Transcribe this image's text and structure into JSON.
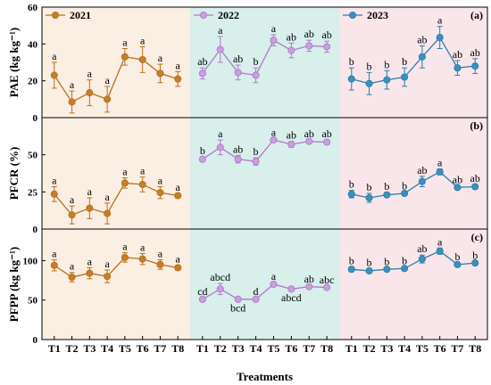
{
  "chart_data": {
    "type": "line",
    "xlabel": "Treatments",
    "categories": [
      "T1",
      "T2",
      "T3",
      "T4",
      "T5",
      "T6",
      "T7",
      "T8"
    ],
    "years": [
      {
        "name": "2021",
        "color": "#b8711d",
        "face": "#c47f2a",
        "background": "#fbeee2"
      },
      {
        "name": "2022",
        "color": "#b07ac8",
        "face": "#c8a0dc",
        "background": "#d8efec"
      },
      {
        "name": "2023",
        "color": "#2b7fa8",
        "face": "#3a91be",
        "background": "#f9e6ea"
      }
    ],
    "panels": [
      {
        "id": "(a)",
        "ylabel": "PAE (kg kg⁻¹)",
        "ylim": [
          0,
          60
        ],
        "yticks": [
          0,
          20,
          40,
          60
        ],
        "series": [
          {
            "year": "2021",
            "values": [
              23,
              8.5,
              13.5,
              10,
              33,
              31.5,
              24,
              21
            ],
            "errors": [
              7,
              6,
              7,
              7,
              4.5,
              7,
              5,
              4
            ],
            "labels": [
              "a",
              "a",
              "a",
              "a",
              "a",
              "a",
              "a",
              "a"
            ]
          },
          {
            "year": "2022",
            "values": [
              24,
              37,
              24.5,
              23,
              42,
              36.5,
              39,
              38.5
            ],
            "errors": [
              3,
              7,
              4,
              4,
              3,
              4,
              3,
              3
            ],
            "labels": [
              "ab",
              "a",
              "ab",
              "b",
              "a",
              "ab",
              "ab",
              "ab"
            ]
          },
          {
            "year": "2023",
            "values": [
              21,
              18.5,
              20.5,
              22,
              33,
              43.5,
              27,
              28
            ],
            "errors": [
              6,
              6,
              5,
              5,
              6,
              6,
              4,
              4
            ],
            "labels": [
              "b",
              "b",
              "b",
              "b",
              "ab",
              "a",
              "ab",
              "ab"
            ]
          }
        ]
      },
      {
        "id": "(b)",
        "ylabel": "PFCR (%)",
        "ylim": [
          0,
          75
        ],
        "yticks": [
          0,
          25,
          50
        ],
        "series": [
          {
            "year": "2021",
            "values": [
              23.5,
              9.5,
              14,
              10.5,
              31,
              30,
              24.5,
              22.5
            ],
            "errors": [
              5,
              6,
              7,
              7,
              3.5,
              5,
              4,
              1.5
            ],
            "labels": [
              "a",
              "a",
              "a",
              "a",
              "a",
              "a",
              "a",
              "a"
            ]
          },
          {
            "year": "2022",
            "values": [
              47,
              55,
              47,
              45.5,
              60,
              57,
              59,
              58.5
            ],
            "errors": [
              1.5,
              5,
              2.5,
              2.5,
              1,
              2,
              1,
              1.5
            ],
            "labels": [
              "b",
              "a",
              "ab",
              "b",
              "a",
              "ab",
              "ab",
              "ab"
            ]
          },
          {
            "year": "2023",
            "values": [
              23.5,
              21,
              23,
              24,
              32,
              38.5,
              28,
              28.5
            ],
            "errors": [
              2.5,
              3,
              1.5,
              1,
              3.5,
              2,
              1,
              1.5
            ],
            "labels": [
              "b",
              "b",
              "b",
              "b",
              "ab",
              "a",
              "ab",
              "ab"
            ]
          }
        ]
      },
      {
        "id": "(c)",
        "ylabel": "PFPP (kg kg⁻¹)",
        "ylim": [
          0,
          140
        ],
        "yticks": [
          0,
          50,
          100
        ],
        "series": [
          {
            "year": "2021",
            "values": [
              94,
              79,
              84,
              80,
              104,
              102,
              95,
              91
            ],
            "errors": [
              7,
              6,
              7,
              8,
              6,
              7,
              6,
              3
            ],
            "labels": [
              "a",
              "a",
              "a",
              "a",
              "a",
              "a",
              "a",
              "a"
            ]
          },
          {
            "year": "2022",
            "values": [
              51,
              64,
              51,
              51,
              70,
              64,
              67,
              66
            ],
            "errors": [
              2,
              7,
              2,
              2,
              2,
              2,
              2,
              2
            ],
            "labels": [
              "cd",
              "abcd",
              "bcd",
              "d",
              "a",
              "abcd",
              "ab",
              "abc"
            ]
          },
          {
            "year": "2023",
            "values": [
              89,
              87,
              89,
              90,
              102,
              112,
              95,
              97
            ],
            "errors": [
              3,
              3,
              2,
              2,
              5,
              4,
              2,
              2
            ],
            "labels": [
              "b",
              "b",
              "b",
              "b",
              "ab",
              "a",
              "b",
              "b"
            ]
          }
        ]
      }
    ]
  }
}
